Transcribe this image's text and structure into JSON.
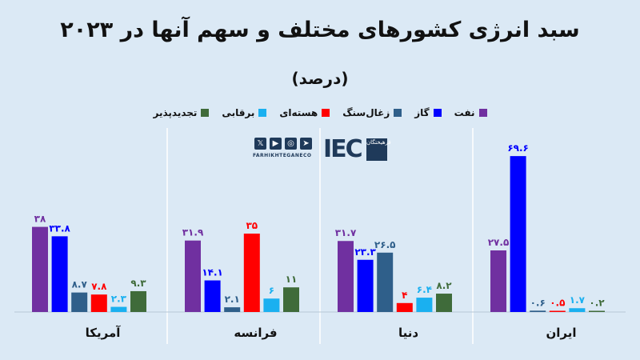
{
  "title": "سبد انرژی کشورهای مختلف و سهم آنها در ۲۰۲۳",
  "subtitle": "(درصد)",
  "logo": {
    "site": "FARHIKHTEGANECO",
    "brand": "IEC",
    "tag": "فرهیختگان"
  },
  "chart_data": {
    "type": "bar",
    "categories": [
      "آمریکا",
      "فرانسه",
      "دنیا",
      "ایران"
    ],
    "series": [
      {
        "name": "نفت",
        "color": "#7030a0",
        "values": [
          38,
          31.9,
          31.7,
          27.5
        ],
        "labels": [
          "۳۸",
          "۳۱.۹",
          "۳۱.۷",
          "۲۷.۵"
        ]
      },
      {
        "name": "گاز",
        "color": "#0000ff",
        "values": [
          33.8,
          14.1,
          23.3,
          69.6
        ],
        "labels": [
          "۳۳.۸",
          "۱۴.۱",
          "۲۳.۳",
          "۶۹.۶"
        ]
      },
      {
        "name": "زغال‌سنگ",
        "color": "#2f5f8a",
        "values": [
          8.7,
          2.1,
          26.5,
          0.6
        ],
        "labels": [
          "۸.۷",
          "۲.۱",
          "۲۶.۵",
          "۰.۶"
        ]
      },
      {
        "name": "هسته‌ای",
        "color": "#ff0000",
        "values": [
          7.8,
          35,
          4,
          0.5
        ],
        "labels": [
          "۷.۸",
          "۳۵",
          "۴",
          "۰.۵"
        ]
      },
      {
        "name": "برقابی",
        "color": "#1ab0f0",
        "values": [
          2.3,
          6,
          6.4,
          1.7
        ],
        "labels": [
          "۲.۳",
          "۶",
          "۶.۴",
          "۱.۷"
        ]
      },
      {
        "name": "تجدیدپذیر",
        "color": "#3f6b3a",
        "values": [
          9.3,
          11,
          8.2,
          0.2
        ],
        "labels": [
          "۹.۳",
          "۱۱",
          "۸.۲",
          "۰.۲"
        ]
      }
    ],
    "legend_position": "top",
    "grid": false,
    "ylim": [
      0,
      70
    ]
  }
}
